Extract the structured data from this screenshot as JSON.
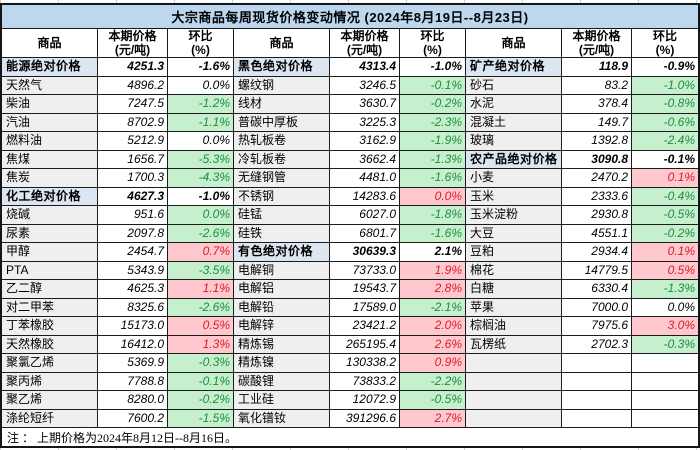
{
  "title": "大宗商品每周现货价格变动情况 (2024年8月19日--8月23日)",
  "note": "注 ： 上期价格为2024年8月12日--8月16日。",
  "columns": {
    "commodity": "商品",
    "price_line1": "本期价格",
    "price_line2": "(元/吨)",
    "change_line1": "环比",
    "change_line2": "(%)"
  },
  "colors": {
    "title_bg": "#BDD7EE",
    "section_row_bg": "#DCE6F1",
    "commodity_col_bg": "#EFEFEF",
    "increase_bg": "#FFC7CE",
    "increase_text": "#D81E28",
    "decrease_bg": "#C6EFCE",
    "decrease_text": "#1E8E3E",
    "border": "#161616"
  },
  "sections": [
    {
      "rows": [
        {
          "name": "能源绝对价格",
          "price": "4251.3",
          "change": "-1.6%",
          "section": true,
          "trend": "none"
        },
        {
          "name": "天然气",
          "price": "4896.2",
          "change": "0.0%",
          "trend": "none"
        },
        {
          "name": "柴油",
          "price": "7247.5",
          "change": "-1.2%",
          "trend": "down"
        },
        {
          "name": "汽油",
          "price": "8702.9",
          "change": "-1.1%",
          "trend": "down"
        },
        {
          "name": "燃料油",
          "price": "5212.9",
          "change": "0.0%",
          "trend": "none"
        },
        {
          "name": "焦煤",
          "price": "1656.7",
          "change": "-5.3%",
          "trend": "down"
        },
        {
          "name": "焦炭",
          "price": "1700.3",
          "change": "-4.3%",
          "trend": "down"
        },
        {
          "name": "化工绝对价格",
          "price": "4627.3",
          "change": "-1.0%",
          "section": true,
          "trend": "none"
        },
        {
          "name": "烧碱",
          "price": "951.6",
          "change": "0.0%",
          "trend": "down"
        },
        {
          "name": "尿素",
          "price": "2097.8",
          "change": "-2.6%",
          "trend": "down"
        },
        {
          "name": "甲醇",
          "price": "2454.7",
          "change": "0.7%",
          "trend": "up"
        },
        {
          "name": "PTA",
          "price": "5343.9",
          "change": "-3.5%",
          "trend": "down"
        },
        {
          "name": "乙二醇",
          "price": "4625.3",
          "change": "1.1%",
          "trend": "up"
        },
        {
          "name": "对二甲苯",
          "price": "8325.6",
          "change": "-2.6%",
          "trend": "down"
        },
        {
          "name": "丁苯橡胶",
          "price": "15173.0",
          "change": "0.5%",
          "trend": "up"
        },
        {
          "name": "天然橡胶",
          "price": "16412.0",
          "change": "1.3%",
          "trend": "up"
        },
        {
          "name": "聚氯乙烯",
          "price": "5369.9",
          "change": "-0.3%",
          "trend": "down"
        },
        {
          "name": "聚丙烯",
          "price": "7788.8",
          "change": "-0.1%",
          "trend": "down"
        },
        {
          "name": "聚乙烯",
          "price": "8280.0",
          "change": "-0.2%",
          "trend": "down"
        },
        {
          "name": "涤纶短纤",
          "price": "7600.2",
          "change": "-1.5%",
          "trend": "down"
        }
      ]
    },
    {
      "rows": [
        {
          "name": "黑色绝对价格",
          "price": "4313.4",
          "change": "-1.0%",
          "section": true,
          "trend": "none"
        },
        {
          "name": "螺纹钢",
          "price": "3246.5",
          "change": "-0.1%",
          "trend": "down"
        },
        {
          "name": "线材",
          "price": "3630.7",
          "change": "-0.2%",
          "trend": "down"
        },
        {
          "name": "普碳中厚板",
          "price": "3225.3",
          "change": "-2.3%",
          "trend": "down"
        },
        {
          "name": "热轧板卷",
          "price": "3162.9",
          "change": "-1.9%",
          "trend": "down"
        },
        {
          "name": "冷轧板卷",
          "price": "3662.4",
          "change": "-1.3%",
          "trend": "down"
        },
        {
          "name": "无缝钢管",
          "price": "4481.0",
          "change": "-1.6%",
          "trend": "down"
        },
        {
          "name": "不锈钢",
          "price": "14283.6",
          "change": "0.0%",
          "trend": "up"
        },
        {
          "name": "硅锰",
          "price": "6027.0",
          "change": "-1.8%",
          "trend": "down"
        },
        {
          "name": "硅铁",
          "price": "6801.7",
          "change": "-1.6%",
          "trend": "down"
        },
        {
          "name": "有色绝对价格",
          "price": "30639.3",
          "change": "2.1%",
          "section": true,
          "trend": "none"
        },
        {
          "name": "电解铜",
          "price": "73733.0",
          "change": "1.9%",
          "trend": "up"
        },
        {
          "name": "电解铝",
          "price": "19543.7",
          "change": "2.8%",
          "trend": "up"
        },
        {
          "name": "电解铅",
          "price": "17589.0",
          "change": "-2.1%",
          "trend": "down"
        },
        {
          "name": "电解锌",
          "price": "23421.2",
          "change": "2.0%",
          "trend": "up"
        },
        {
          "name": "精炼锡",
          "price": "265195.4",
          "change": "2.6%",
          "trend": "up"
        },
        {
          "name": "精炼镍",
          "price": "130338.2",
          "change": "0.9%",
          "trend": "up"
        },
        {
          "name": "碳酸锂",
          "price": "73833.2",
          "change": "-2.2%",
          "trend": "down"
        },
        {
          "name": "工业硅",
          "price": "12072.9",
          "change": "-0.5%",
          "trend": "down"
        },
        {
          "name": "氧化镨钕",
          "price": "391296.6",
          "change": "2.7%",
          "trend": "up"
        }
      ]
    },
    {
      "rows": [
        {
          "name": "矿产绝对价格",
          "price": "118.9",
          "change": "-0.9%",
          "section": true,
          "trend": "none"
        },
        {
          "name": "砂石",
          "price": "83.2",
          "change": "-1.0%",
          "trend": "down"
        },
        {
          "name": "水泥",
          "price": "378.4",
          "change": "-0.8%",
          "trend": "down"
        },
        {
          "name": "混凝土",
          "price": "149.7",
          "change": "-0.6%",
          "trend": "down"
        },
        {
          "name": "玻璃",
          "price": "1392.8",
          "change": "-2.4%",
          "trend": "down"
        },
        {
          "name": "农产品绝对价格",
          "price": "3090.8",
          "change": "-0.1%",
          "section": true,
          "trend": "none"
        },
        {
          "name": "小麦",
          "price": "2470.2",
          "change": "0.1%",
          "trend": "up"
        },
        {
          "name": "玉米",
          "price": "2333.6",
          "change": "-0.4%",
          "trend": "down"
        },
        {
          "name": "玉米淀粉",
          "price": "2930.8",
          "change": "-0.5%",
          "trend": "down"
        },
        {
          "name": "大豆",
          "price": "4551.1",
          "change": "-0.2%",
          "trend": "down"
        },
        {
          "name": "豆粕",
          "price": "2934.4",
          "change": "0.1%",
          "trend": "up"
        },
        {
          "name": "棉花",
          "price": "14779.5",
          "change": "0.5%",
          "trend": "up"
        },
        {
          "name": "白糖",
          "price": "6330.4",
          "change": "-1.3%",
          "trend": "down"
        },
        {
          "name": "苹果",
          "price": "7000.0",
          "change": "0.0%",
          "trend": "none"
        },
        {
          "name": "棕榈油",
          "price": "7975.6",
          "change": "3.0%",
          "trend": "up"
        },
        {
          "name": "瓦楞纸",
          "price": "2702.3",
          "change": "-0.3%",
          "trend": "down"
        },
        {
          "name": "",
          "price": "",
          "change": "",
          "trend": "none",
          "empty": true
        },
        {
          "name": "",
          "price": "",
          "change": "",
          "trend": "none",
          "empty": true
        },
        {
          "name": "",
          "price": "",
          "change": "",
          "trend": "none",
          "empty": true
        },
        {
          "name": "",
          "price": "",
          "change": "",
          "trend": "none",
          "empty": true
        }
      ]
    }
  ]
}
